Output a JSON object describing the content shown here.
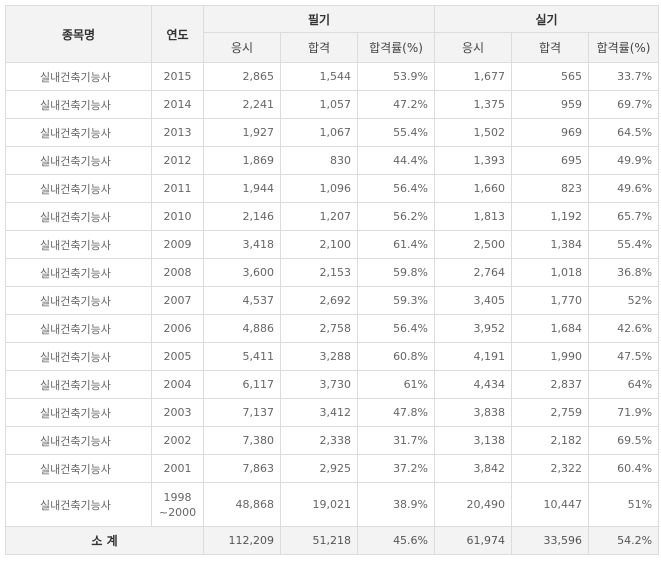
{
  "header": {
    "name": "종목명",
    "year": "연도",
    "written": "필기",
    "practical": "실기",
    "applicants": "응시",
    "passed": "합격",
    "rate": "합격률(%)"
  },
  "rows": [
    {
      "name": "실내건축기능사",
      "year": "2015",
      "w_app": "2,865",
      "w_pass": "1,544",
      "w_rate": "53.9%",
      "p_app": "1,677",
      "p_pass": "565",
      "p_rate": "33.7%"
    },
    {
      "name": "실내건축기능사",
      "year": "2014",
      "w_app": "2,241",
      "w_pass": "1,057",
      "w_rate": "47.2%",
      "p_app": "1,375",
      "p_pass": "959",
      "p_rate": "69.7%"
    },
    {
      "name": "실내건축기능사",
      "year": "2013",
      "w_app": "1,927",
      "w_pass": "1,067",
      "w_rate": "55.4%",
      "p_app": "1,502",
      "p_pass": "969",
      "p_rate": "64.5%"
    },
    {
      "name": "실내건축기능사",
      "year": "2012",
      "w_app": "1,869",
      "w_pass": "830",
      "w_rate": "44.4%",
      "p_app": "1,393",
      "p_pass": "695",
      "p_rate": "49.9%"
    },
    {
      "name": "실내건축기능사",
      "year": "2011",
      "w_app": "1,944",
      "w_pass": "1,096",
      "w_rate": "56.4%",
      "p_app": "1,660",
      "p_pass": "823",
      "p_rate": "49.6%"
    },
    {
      "name": "실내건축기능사",
      "year": "2010",
      "w_app": "2,146",
      "w_pass": "1,207",
      "w_rate": "56.2%",
      "p_app": "1,813",
      "p_pass": "1,192",
      "p_rate": "65.7%"
    },
    {
      "name": "실내건축기능사",
      "year": "2009",
      "w_app": "3,418",
      "w_pass": "2,100",
      "w_rate": "61.4%",
      "p_app": "2,500",
      "p_pass": "1,384",
      "p_rate": "55.4%"
    },
    {
      "name": "실내건축기능사",
      "year": "2008",
      "w_app": "3,600",
      "w_pass": "2,153",
      "w_rate": "59.8%",
      "p_app": "2,764",
      "p_pass": "1,018",
      "p_rate": "36.8%"
    },
    {
      "name": "실내건축기능사",
      "year": "2007",
      "w_app": "4,537",
      "w_pass": "2,692",
      "w_rate": "59.3%",
      "p_app": "3,405",
      "p_pass": "1,770",
      "p_rate": "52%"
    },
    {
      "name": "실내건축기능사",
      "year": "2006",
      "w_app": "4,886",
      "w_pass": "2,758",
      "w_rate": "56.4%",
      "p_app": "3,952",
      "p_pass": "1,684",
      "p_rate": "42.6%"
    },
    {
      "name": "실내건축기능사",
      "year": "2005",
      "w_app": "5,411",
      "w_pass": "3,288",
      "w_rate": "60.8%",
      "p_app": "4,191",
      "p_pass": "1,990",
      "p_rate": "47.5%"
    },
    {
      "name": "실내건축기능사",
      "year": "2004",
      "w_app": "6,117",
      "w_pass": "3,730",
      "w_rate": "61%",
      "p_app": "4,434",
      "p_pass": "2,837",
      "p_rate": "64%"
    },
    {
      "name": "실내건축기능사",
      "year": "2003",
      "w_app": "7,137",
      "w_pass": "3,412",
      "w_rate": "47.8%",
      "p_app": "3,838",
      "p_pass": "2,759",
      "p_rate": "71.9%"
    },
    {
      "name": "실내건축기능사",
      "year": "2002",
      "w_app": "7,380",
      "w_pass": "2,338",
      "w_rate": "31.7%",
      "p_app": "3,138",
      "p_pass": "2,182",
      "p_rate": "69.5%"
    },
    {
      "name": "실내건축기능사",
      "year": "2001",
      "w_app": "7,863",
      "w_pass": "2,925",
      "w_rate": "37.2%",
      "p_app": "3,842",
      "p_pass": "2,322",
      "p_rate": "60.4%"
    }
  ],
  "last_row": {
    "name": "실내건축기능사",
    "year_line1": "1998",
    "year_line2": "~2000",
    "w_app": "48,868",
    "w_pass": "19,021",
    "w_rate": "38.9%",
    "p_app": "20,490",
    "p_pass": "10,447",
    "p_rate": "51%"
  },
  "total": {
    "label": "소 계",
    "w_app": "112,209",
    "w_pass": "51,218",
    "w_rate": "45.6%",
    "p_app": "61,974",
    "p_pass": "33,596",
    "p_rate": "54.2%"
  }
}
